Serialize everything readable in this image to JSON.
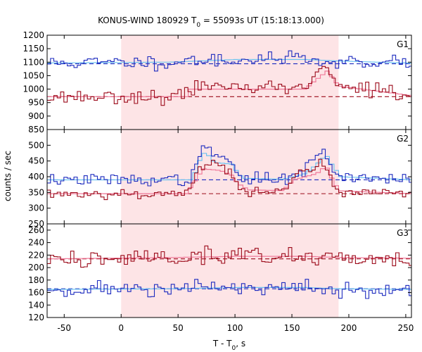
{
  "chart_data": {
    "type": "line",
    "title_main": "KONUS-WIND 180929 T",
    "title_sub": "0",
    "title_rest": " = 55093s UT (15:18:13.000)",
    "xlabel_main": "T - T",
    "xlabel_sub": "0",
    "xlabel_rest": ", s",
    "ylabel": "counts / sec",
    "xlim": [
      -65,
      255
    ],
    "x_ticks": [
      -50,
      0,
      50,
      100,
      150,
      200,
      250
    ],
    "highlight_interval": [
      0,
      191
    ],
    "colors": {
      "highlight": "#fde4e6",
      "high_series": "#1d2bbf",
      "low_series": "#9c0a1a",
      "high_fit": "#6ec3f0",
      "low_fit": "#f07a9a"
    },
    "panels": [
      {
        "label": "G1",
        "ylim": [
          850,
          1200
        ],
        "y_ticks": [
          850,
          900,
          950,
          1000,
          1050,
          1100,
          1150,
          1200
        ],
        "series": [
          {
            "key": "high",
            "background": 1094,
            "noise": 13,
            "seed": 11,
            "fit": [
              [
                -65,
                1097
              ],
              [
                40,
                1100
              ],
              [
                100,
                1110
              ],
              [
                160,
                1110
              ],
              [
                191,
                1104
              ],
              [
                255,
                1096
              ]
            ],
            "bumps": [
              [
                40,
                95,
                8
              ],
              [
                60,
                100,
                12
              ],
              [
                140,
                180,
                6
              ]
            ]
          },
          {
            "key": "low",
            "background": 972,
            "noise": 12,
            "seed": 23,
            "fit": [
              [
                -65,
                972
              ],
              [
                55,
                972
              ],
              [
                56,
                1000
              ],
              [
                160,
                1000
              ],
              [
                165,
                1020
              ],
              [
                180,
                1070
              ],
              [
                185,
                1030
              ],
              [
                191,
                1010
              ],
              [
                255,
                975
              ]
            ],
            "bumps": [
              [
                55,
                130,
                30
              ],
              [
                140,
                160,
                25
              ],
              [
                160,
                185,
                60
              ],
              [
                185,
                191,
                20
              ]
            ]
          }
        ]
      },
      {
        "label": "G2",
        "ylim": [
          250,
          550
        ],
        "y_ticks": [
          250,
          300,
          350,
          400,
          450,
          500
        ],
        "series": [
          {
            "key": "high",
            "background": 390,
            "noise": 9,
            "seed": 37,
            "fit": [
              [
                -65,
                390
              ],
              [
                60,
                390
              ],
              [
                62,
                400
              ],
              [
                65,
                440
              ],
              [
                72,
                480
              ],
              [
                80,
                445
              ],
              [
                95,
                440
              ],
              [
                100,
                415
              ],
              [
                105,
                395
              ],
              [
                140,
                392
              ],
              [
                150,
                400
              ],
              [
                160,
                410
              ],
              [
                170,
                440
              ],
              [
                178,
                470
              ],
              [
                183,
                440
              ],
              [
                191,
                400
              ],
              [
                255,
                390
              ]
            ],
            "bumps": [
              [
                62,
                100,
                55
              ],
              [
                65,
                80,
                40
              ],
              [
                148,
                188,
                30
              ],
              [
                165,
                183,
                50
              ]
            ]
          },
          {
            "key": "low",
            "background": 346,
            "noise": 8,
            "seed": 53,
            "fit": [
              [
                -65,
                346
              ],
              [
                55,
                346
              ],
              [
                60,
                370
              ],
              [
                70,
                425
              ],
              [
                85,
                420
              ],
              [
                95,
                405
              ],
              [
                100,
                380
              ],
              [
                110,
                358
              ],
              [
                140,
                356
              ],
              [
                150,
                390
              ],
              [
                160,
                400
              ],
              [
                170,
                410
              ],
              [
                178,
                435
              ],
              [
                185,
                380
              ],
              [
                191,
                355
              ],
              [
                255,
                346
              ]
            ],
            "bumps": [
              [
                58,
                105,
                65
              ],
              [
                140,
                188,
                55
              ],
              [
                165,
                183,
                35
              ]
            ]
          }
        ]
      },
      {
        "label": "G3",
        "ylim": [
          120,
          270
        ],
        "y_ticks": [
          120,
          140,
          160,
          180,
          200,
          220,
          240,
          260
        ],
        "series": [
          {
            "key": "high",
            "background": 166,
            "noise": 6,
            "seed": 71,
            "fit": [
              [
                -65,
                165
              ],
              [
                40,
                166
              ],
              [
                100,
                168
              ],
              [
                160,
                168
              ],
              [
                191,
                166
              ],
              [
                255,
                165
              ]
            ],
            "bumps": [
              [
                60,
                150,
                3
              ]
            ]
          },
          {
            "key": "low",
            "background": 214,
            "noise": 8,
            "seed": 89,
            "fit": [
              [
                -65,
                214
              ],
              [
                40,
                216
              ],
              [
                100,
                218
              ],
              [
                160,
                218
              ],
              [
                191,
                216
              ],
              [
                255,
                215
              ]
            ],
            "bumps": [
              [
                60,
                150,
                6
              ]
            ]
          }
        ]
      }
    ]
  }
}
